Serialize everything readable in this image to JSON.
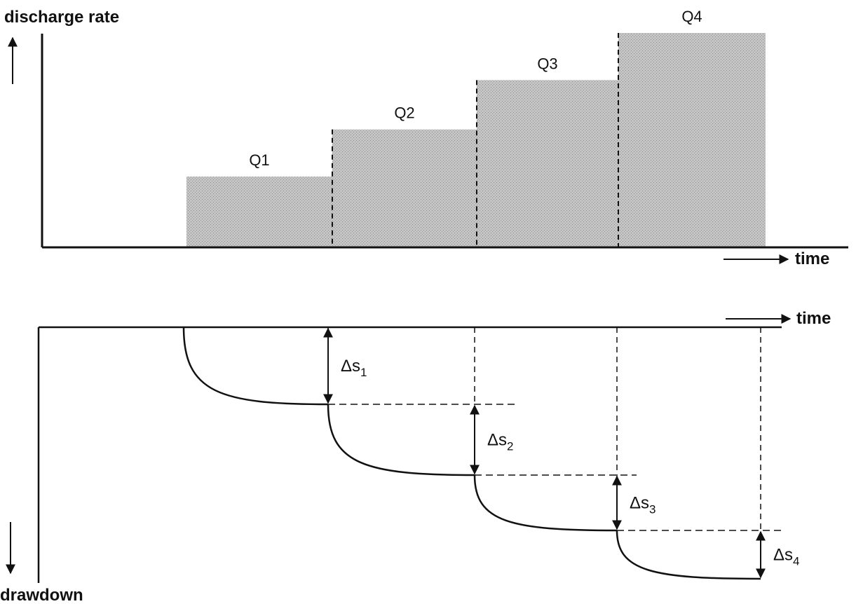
{
  "top_panel": {
    "y_axis_label": "discharge rate",
    "x_axis_label": "time",
    "steps": [
      {
        "label": "Q1",
        "relative_rate": 0.33
      },
      {
        "label": "Q2",
        "relative_rate": 0.55
      },
      {
        "label": "Q3",
        "relative_rate": 0.78
      },
      {
        "label": "Q4",
        "relative_rate": 1.0
      }
    ]
  },
  "bottom_panel": {
    "x_axis_label": "time",
    "y_axis_label": "drawdown",
    "increments": [
      {
        "symbol": "Δs",
        "subscript": "1"
      },
      {
        "symbol": "Δs",
        "subscript": "2"
      },
      {
        "symbol": "Δs",
        "subscript": "3"
      },
      {
        "symbol": "Δs",
        "subscript": "4"
      }
    ]
  },
  "colors": {
    "ink": "#111111",
    "bar_fill": "#b9b9b9",
    "background": "#ffffff"
  }
}
